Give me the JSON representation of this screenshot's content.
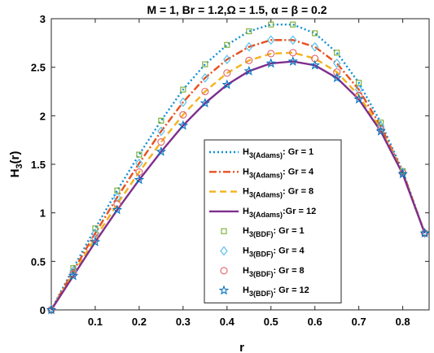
{
  "chart_data": {
    "type": "line",
    "title": "M = 1, Br = 1.2,Ω = 1.5, α = β = 0.2",
    "xlabel": "r",
    "ylabel": "H3(r)",
    "ylabel_parts": {
      "main": "H",
      "sub": "3",
      "rest": "(r)"
    },
    "xlim": [
      0,
      0.86
    ],
    "ylim": [
      0,
      3
    ],
    "xticks": [
      0.1,
      0.2,
      0.3,
      0.4,
      0.5,
      0.6,
      0.7,
      0.8
    ],
    "xtick_labels": [
      "0.1",
      "0.2",
      "0.3",
      "0.4",
      "0.5",
      "0.6",
      "0.7",
      "0.8"
    ],
    "yticks": [
      0,
      0.5,
      1,
      1.5,
      2,
      2.5,
      3
    ],
    "ytick_labels": [
      "0",
      "0.5",
      "1",
      "1.5",
      "2",
      "2.5",
      "3"
    ],
    "grid": false,
    "legend_position": "lower-center",
    "x": [
      0,
      0.05,
      0.1,
      0.15,
      0.2,
      0.25,
      0.3,
      0.35,
      0.4,
      0.45,
      0.5,
      0.55,
      0.6,
      0.65,
      0.7,
      0.75,
      0.8,
      0.85
    ],
    "series": [
      {
        "name": "H3(Adams): Gr = 1",
        "legend": {
          "main": "H",
          "sub": "3(Adams)",
          "rest": ": Gr = 1"
        },
        "kind": "line",
        "color": "#0e8fd6",
        "dash": "2,3",
        "width": 2.4,
        "values": [
          0,
          0.43,
          0.84,
          1.23,
          1.6,
          1.95,
          2.27,
          2.53,
          2.73,
          2.87,
          2.94,
          2.94,
          2.85,
          2.65,
          2.34,
          1.93,
          1.43,
          0.79
        ]
      },
      {
        "name": "H3(Adams): Gr = 4",
        "legend": {
          "main": "H",
          "sub": "3(Adams)",
          "rest": ": Gr = 4"
        },
        "kind": "line",
        "color": "#e8501e",
        "dash": "9,3,2,3",
        "width": 2.4,
        "values": [
          0,
          0.4,
          0.79,
          1.16,
          1.51,
          1.84,
          2.14,
          2.39,
          2.58,
          2.71,
          2.78,
          2.78,
          2.71,
          2.54,
          2.27,
          1.89,
          1.42,
          0.79
        ]
      },
      {
        "name": "H3(Adams): Gr = 8",
        "legend": {
          "main": "H",
          "sub": "3(Adams)",
          "rest": ": Gr = 8"
        },
        "kind": "line",
        "color": "#f5b21d",
        "dash": "8,5",
        "width": 2.4,
        "values": [
          0,
          0.37,
          0.74,
          1.09,
          1.42,
          1.73,
          2.01,
          2.25,
          2.44,
          2.57,
          2.64,
          2.65,
          2.59,
          2.45,
          2.21,
          1.86,
          1.41,
          0.79
        ]
      },
      {
        "name": "H3(Adams):Gr = 12",
        "legend": {
          "main": "H",
          "sub": "3(Adams)",
          "rest": ":Gr = 12"
        },
        "kind": "line",
        "color": "#7e2f8e",
        "dash": "",
        "width": 2.4,
        "values": [
          0,
          0.35,
          0.7,
          1.03,
          1.34,
          1.63,
          1.9,
          2.13,
          2.32,
          2.46,
          2.54,
          2.56,
          2.52,
          2.39,
          2.17,
          1.84,
          1.4,
          0.79
        ]
      },
      {
        "name": "H3(BDF): Gr = 1",
        "legend": {
          "main": "H",
          "sub": "3(BDF)",
          "rest": ": Gr = 1"
        },
        "kind": "marker",
        "marker": "square",
        "color": "#77ac30",
        "values": [
          0,
          0.43,
          0.84,
          1.23,
          1.6,
          1.95,
          2.27,
          2.53,
          2.73,
          2.87,
          2.94,
          2.94,
          2.85,
          2.65,
          2.34,
          1.93,
          1.43,
          0.79
        ]
      },
      {
        "name": "H3(BDF): Gr = 4",
        "legend": {
          "main": "H",
          "sub": "3(BDF)",
          "rest": ": Gr = 4"
        },
        "kind": "marker",
        "marker": "diamond",
        "color": "#4dbeee",
        "values": [
          0,
          0.4,
          0.79,
          1.16,
          1.51,
          1.84,
          2.14,
          2.39,
          2.58,
          2.71,
          2.78,
          2.78,
          2.71,
          2.54,
          2.27,
          1.89,
          1.42,
          0.79
        ]
      },
      {
        "name": "H3(BDF): Gr = 8",
        "legend": {
          "main": "H",
          "sub": "3(BDF)",
          "rest": ": Gr = 8"
        },
        "kind": "marker",
        "marker": "circle",
        "color": "#e0606a",
        "values": [
          0,
          0.37,
          0.74,
          1.09,
          1.42,
          1.73,
          2.01,
          2.25,
          2.44,
          2.57,
          2.64,
          2.65,
          2.59,
          2.45,
          2.21,
          1.86,
          1.41,
          0.79
        ]
      },
      {
        "name": "H3(BDF): Gr = 12",
        "legend": {
          "main": "H",
          "sub": "3(BDF)",
          "rest": ": Gr = 12"
        },
        "kind": "marker",
        "marker": "pentagram",
        "color": "#0072bd",
        "values": [
          0,
          0.35,
          0.7,
          1.03,
          1.34,
          1.63,
          1.9,
          2.13,
          2.32,
          2.46,
          2.54,
          2.56,
          2.52,
          2.39,
          2.17,
          1.84,
          1.4,
          0.79
        ]
      }
    ]
  }
}
